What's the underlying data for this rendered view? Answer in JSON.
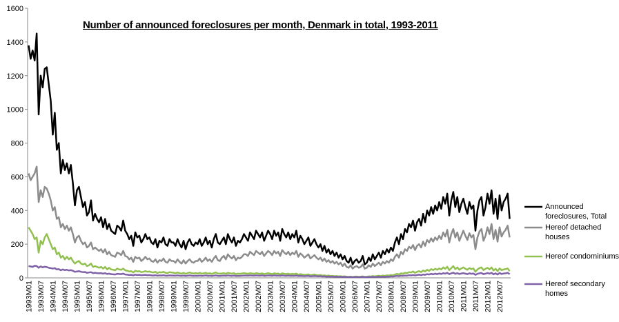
{
  "chart_data": {
    "type": "line",
    "title": "Number of announced foreclosures per month, Denmark in total, 1993-2011",
    "categories": [
      "1993M01",
      null,
      null,
      null,
      null,
      null,
      "1993M07",
      null,
      null,
      null,
      null,
      null,
      "1994M01",
      null,
      null,
      null,
      null,
      null,
      "1994M07",
      null,
      null,
      null,
      null,
      null,
      "1995M01",
      null,
      null,
      null,
      null,
      null,
      "1995M07",
      null,
      null,
      null,
      null,
      null,
      "1996M01",
      null,
      null,
      null,
      null,
      null,
      "1996M07",
      null,
      null,
      null,
      null,
      null,
      "1997M01",
      null,
      null,
      null,
      null,
      null,
      "1997M07",
      null,
      null,
      null,
      null,
      null,
      "1998M01",
      null,
      null,
      null,
      null,
      null,
      "1998M07",
      null,
      null,
      null,
      null,
      null,
      "1999M01",
      null,
      null,
      null,
      null,
      null,
      "1999M07",
      null,
      null,
      null,
      null,
      null,
      "2000M01",
      null,
      null,
      null,
      null,
      null,
      "2000M07",
      null,
      null,
      null,
      null,
      null,
      "2001M01",
      null,
      null,
      null,
      null,
      null,
      "2001M07",
      null,
      null,
      null,
      null,
      null,
      "2002M01",
      null,
      null,
      null,
      null,
      null,
      "2002M07",
      null,
      null,
      null,
      null,
      null,
      "2003M01",
      null,
      null,
      null,
      null,
      null,
      "2003M07",
      null,
      null,
      null,
      null,
      null,
      "2004M01",
      null,
      null,
      null,
      null,
      null,
      "2004M07",
      null,
      null,
      null,
      null,
      null,
      "2005M01",
      null,
      null,
      null,
      null,
      null,
      "2005M07",
      null,
      null,
      null,
      null,
      null,
      "2006M01",
      null,
      null,
      null,
      null,
      null,
      "2006M07",
      null,
      null,
      null,
      null,
      null,
      "2007M01",
      null,
      null,
      null,
      null,
      null,
      "2007M07",
      null,
      null,
      null,
      null,
      null,
      "2008M01",
      null,
      null,
      null,
      null,
      null,
      "2008M07",
      null,
      null,
      null,
      null,
      null,
      "2009M01",
      null,
      null,
      null,
      null,
      null,
      "2009M07",
      null,
      null,
      null,
      null,
      null,
      "2010M01",
      null,
      null,
      null,
      null,
      null,
      "2010M07",
      null,
      null,
      null,
      null,
      null,
      "2011M01",
      null,
      null,
      null,
      null,
      null,
      "2011M07",
      null,
      null,
      null,
      null,
      null,
      "2012M01",
      null,
      null,
      null,
      null,
      null,
      "2012M07",
      null,
      null,
      null,
      null,
      null
    ],
    "ylim": [
      0,
      1600
    ],
    "yticks": [
      0,
      200,
      400,
      600,
      800,
      1000,
      1200,
      1400,
      1600
    ],
    "grid": false,
    "series": [
      {
        "name": "Announced foreclosures, Total",
        "color": "#000000",
        "values": [
          1380,
          1300,
          1350,
          1290,
          1450,
          970,
          1200,
          1130,
          1240,
          1250,
          1150,
          1050,
          850,
          980,
          760,
          800,
          620,
          700,
          640,
          680,
          620,
          670,
          560,
          430,
          520,
          540,
          480,
          420,
          450,
          370,
          390,
          460,
          340,
          380,
          350,
          330,
          360,
          300,
          350,
          290,
          320,
          280,
          270,
          260,
          310,
          300,
          280,
          340,
          280,
          260,
          230,
          250,
          190,
          270,
          240,
          250,
          210,
          230,
          260,
          230,
          240,
          210,
          200,
          230,
          180,
          220,
          210,
          240,
          200,
          190,
          230,
          210,
          210,
          190,
          230,
          200,
          180,
          220,
          170,
          210,
          230,
          200,
          190,
          210,
          200,
          230,
          190,
          210,
          240,
          200,
          220,
          180,
          230,
          260,
          210,
          200,
          220,
          240,
          200,
          260,
          230,
          210,
          240,
          190,
          220,
          210,
          230,
          260,
          240,
          220,
          270,
          250,
          230,
          280,
          260,
          240,
          270,
          220,
          250,
          280,
          260,
          230,
          280,
          250,
          270,
          220,
          290,
          260,
          240,
          270,
          230,
          260,
          240,
          280,
          210,
          250,
          230,
          200,
          220,
          240,
          190,
          210,
          230,
          200,
          180,
          200,
          160,
          190,
          150,
          170,
          140,
          160,
          130,
          150,
          120,
          140,
          110,
          130,
          100,
          90,
          120,
          80,
          100,
          110,
          90,
          100,
          130,
          80,
          90,
          120,
          100,
          140,
          110,
          130,
          150,
          120,
          160,
          140,
          170,
          150,
          180,
          160,
          210,
          240,
          200,
          260,
          230,
          290,
          270,
          320,
          300,
          340,
          280,
          330,
          350,
          310,
          380,
          330,
          400,
          370,
          420,
          380,
          430,
          400,
          450,
          410,
          480,
          440,
          500,
          370,
          460,
          510,
          420,
          480,
          390,
          440,
          470,
          420,
          380,
          450,
          410,
          430,
          280,
          400,
          460,
          480,
          370,
          420,
          500,
          440,
          520,
          380,
          470,
          350,
          490,
          400,
          450,
          470,
          500,
          350
        ]
      },
      {
        "name": "Hereof detached houses",
        "color": "#8c8c8c",
        "values": [
          620,
          580,
          600,
          620,
          660,
          450,
          520,
          480,
          540,
          530,
          500,
          460,
          400,
          420,
          350,
          360,
          300,
          320,
          290,
          310,
          280,
          300,
          260,
          210,
          240,
          250,
          220,
          200,
          210,
          180,
          190,
          210,
          170,
          180,
          170,
          160,
          170,
          150,
          170,
          140,
          155,
          135,
          130,
          125,
          150,
          145,
          135,
          160,
          130,
          125,
          110,
          120,
          95,
          125,
          115,
          120,
          100,
          110,
          125,
          110,
          115,
          100,
          95,
          110,
          90,
          105,
          100,
          115,
          95,
          90,
          110,
          100,
          100,
          90,
          110,
          95,
          85,
          105,
          85,
          100,
          110,
          95,
          90,
          100,
          100,
          115,
          95,
          105,
          120,
          100,
          110,
          95,
          115,
          130,
          105,
          100,
          120,
          130,
          110,
          140,
          125,
          115,
          130,
          105,
          120,
          115,
          125,
          140,
          140,
          130,
          155,
          145,
          135,
          160,
          150,
          140,
          155,
          130,
          145,
          160,
          150,
          135,
          160,
          145,
          155,
          130,
          165,
          150,
          140,
          155,
          135,
          150,
          140,
          160,
          125,
          145,
          135,
          120,
          130,
          140,
          115,
          125,
          135,
          120,
          110,
          120,
          100,
          115,
          95,
          105,
          90,
          100,
          85,
          95,
          80,
          90,
          70,
          85,
          65,
          60,
          75,
          55,
          65,
          70,
          60,
          65,
          80,
          55,
          60,
          75,
          65,
          85,
          70,
          80,
          90,
          75,
          95,
          85,
          100,
          90,
          110,
          100,
          125,
          140,
          120,
          155,
          140,
          170,
          160,
          185,
          175,
          195,
          165,
          190,
          200,
          180,
          215,
          190,
          225,
          210,
          235,
          215,
          240,
          225,
          250,
          230,
          270,
          245,
          285,
          210,
          260,
          290,
          240,
          270,
          220,
          250,
          280,
          250,
          225,
          265,
          240,
          255,
          170,
          240,
          275,
          290,
          220,
          250,
          300,
          260,
          320,
          230,
          285,
          215,
          300,
          245,
          270,
          285,
          310,
          240
        ]
      },
      {
        "name": "Hereof condominiums",
        "color": "#92c050",
        "values": [
          300,
          280,
          260,
          230,
          240,
          150,
          220,
          200,
          240,
          260,
          230,
          200,
          170,
          180,
          140,
          150,
          120,
          130,
          110,
          125,
          110,
          120,
          100,
          85,
          95,
          100,
          85,
          80,
          85,
          70,
          75,
          85,
          65,
          70,
          65,
          60,
          65,
          55,
          65,
          50,
          60,
          50,
          48,
          45,
          55,
          50,
          48,
          55,
          45,
          42,
          38,
          40,
          32,
          42,
          38,
          40,
          34,
          36,
          40,
          36,
          38,
          34,
          32,
          36,
          28,
          34,
          32,
          36,
          30,
          28,
          34,
          32,
          30,
          28,
          32,
          28,
          25,
          30,
          24,
          28,
          32,
          28,
          26,
          28,
          26,
          30,
          25,
          27,
          30,
          25,
          28,
          23,
          28,
          32,
          26,
          25,
          26,
          28,
          24,
          30,
          27,
          25,
          28,
          22,
          25,
          24,
          26,
          28,
          26,
          24,
          28,
          26,
          24,
          28,
          26,
          24,
          27,
          22,
          25,
          28,
          25,
          22,
          27,
          24,
          26,
          21,
          27,
          24,
          22,
          25,
          21,
          24,
          22,
          25,
          19,
          22,
          20,
          18,
          19,
          21,
          16,
          18,
          20,
          17,
          15,
          17,
          13,
          15,
          12,
          14,
          11,
          12,
          10,
          11,
          9,
          10,
          8,
          9,
          7,
          6,
          8,
          5,
          7,
          8,
          6,
          7,
          9,
          6,
          7,
          9,
          8,
          11,
          9,
          11,
          13,
          10,
          14,
          12,
          15,
          14,
          17,
          15,
          20,
          24,
          20,
          27,
          24,
          30,
          28,
          34,
          32,
          38,
          30,
          36,
          40,
          34,
          44,
          38,
          48,
          42,
          52,
          46,
          54,
          48,
          56,
          50,
          62,
          54,
          66,
          46,
          58,
          70,
          52,
          62,
          48,
          56,
          62,
          54,
          48,
          58,
          52,
          56,
          36,
          50,
          58,
          62,
          46,
          54,
          60,
          50,
          62,
          44,
          54,
          40,
          56,
          46,
          50,
          52,
          56,
          40
        ]
      },
      {
        "name": "Hereof secondary homes",
        "color": "#7f62a8",
        "values": [
          70,
          68,
          65,
          72,
          70,
          60,
          68,
          62,
          66,
          64,
          60,
          58,
          55,
          58,
          50,
          52,
          45,
          50,
          46,
          48,
          44,
          46,
          42,
          36,
          38,
          40,
          36,
          34,
          35,
          30,
          32,
          34,
          28,
          30,
          28,
          27,
          28,
          25,
          28,
          23,
          25,
          22,
          21,
          20,
          24,
          23,
          22,
          25,
          20,
          19,
          17,
          18,
          15,
          19,
          17,
          18,
          16,
          17,
          18,
          16,
          17,
          15,
          14,
          16,
          13,
          15,
          14,
          16,
          13,
          13,
          15,
          14,
          14,
          13,
          15,
          13,
          12,
          14,
          11,
          13,
          15,
          13,
          12,
          13,
          12,
          14,
          12,
          13,
          15,
          12,
          13,
          11,
          13,
          15,
          12,
          12,
          13,
          14,
          12,
          15,
          13,
          12,
          14,
          11,
          12,
          12,
          13,
          14,
          14,
          13,
          15,
          14,
          13,
          15,
          14,
          13,
          15,
          12,
          13,
          15,
          14,
          12,
          15,
          13,
          14,
          12,
          15,
          13,
          12,
          14,
          12,
          13,
          12,
          14,
          11,
          12,
          11,
          10,
          11,
          12,
          9,
          10,
          11,
          10,
          9,
          10,
          8,
          9,
          7,
          8,
          7,
          8,
          6,
          7,
          6,
          7,
          5,
          6,
          5,
          4,
          5,
          4,
          5,
          5,
          4,
          5,
          6,
          4,
          4,
          5,
          5,
          6,
          5,
          6,
          7,
          6,
          7,
          6,
          8,
          7,
          9,
          8,
          10,
          12,
          10,
          13,
          12,
          14,
          13,
          16,
          15,
          17,
          15,
          17,
          19,
          16,
          20,
          18,
          22,
          20,
          24,
          21,
          25,
          22,
          26,
          23,
          28,
          25,
          30,
          22,
          27,
          31,
          24,
          28,
          23,
          26,
          28,
          25,
          22,
          27,
          24,
          26,
          18,
          24,
          27,
          29,
          22,
          25,
          29,
          25,
          30,
          21,
          27,
          20,
          29,
          23,
          26,
          27,
          30,
          22
        ]
      }
    ]
  }
}
